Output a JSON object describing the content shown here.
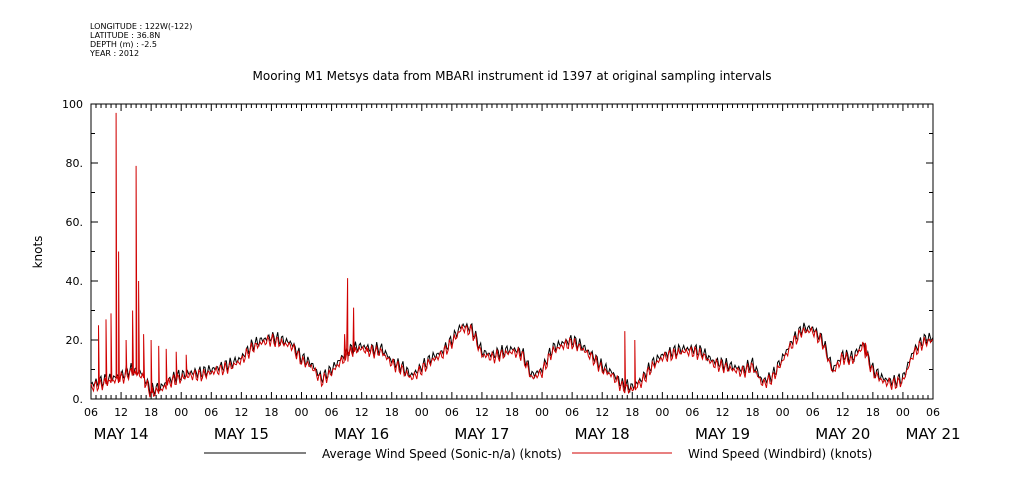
{
  "header": {
    "longitude": "LONGITUDE : 122W(-122)",
    "latitude": "LATITUDE : 36.8N",
    "depth": "DEPTH (m) : -2.5",
    "year": "YEAR : 2012"
  },
  "chart_data": {
    "type": "line",
    "title": "Mooring M1 Metsys data from MBARI instrument id 1397 at original sampling intervals",
    "ylabel": "knots",
    "xlabel": "",
    "ylim": [
      0,
      100
    ],
    "xlim_hours": [
      0,
      168
    ],
    "y_ticks": [
      "0.",
      "20.",
      "40.",
      "60.",
      "80.",
      "100"
    ],
    "x_hour_labels": [
      "06",
      "12",
      "18",
      "00",
      "06",
      "12",
      "18",
      "00",
      "06",
      "12",
      "18",
      "00",
      "06",
      "12",
      "18",
      "00",
      "06",
      "12",
      "18",
      "00",
      "06",
      "12",
      "18",
      "00",
      "06",
      "12",
      "18",
      "00",
      "06"
    ],
    "day_labels": [
      "MAY 14",
      "MAY 15",
      "MAY 16",
      "MAY 17",
      "MAY 18",
      "MAY 19",
      "MAY 20",
      "MAY 21"
    ],
    "grid": false,
    "legend_position": "bottom",
    "series": [
      {
        "name": "Average Wind Speed (Sonic-n/a) (knots)",
        "color": "#000000",
        "x_hours": [
          0,
          2,
          4,
          6,
          8,
          10,
          12,
          14,
          16,
          18,
          20,
          22,
          24,
          26,
          28,
          30,
          32,
          34,
          36,
          38,
          40,
          42,
          44,
          46,
          48,
          50,
          52,
          54,
          56,
          58,
          60,
          62,
          64,
          66,
          68,
          70,
          72,
          74,
          76,
          78,
          80,
          82,
          84,
          86,
          88,
          90,
          92,
          94,
          96,
          98,
          100,
          102,
          104,
          106,
          108,
          110,
          112,
          114,
          116,
          118,
          120,
          122,
          124,
          126,
          128,
          130,
          132,
          134,
          136,
          138,
          140,
          142,
          144,
          146,
          148,
          150,
          152,
          154,
          156,
          158,
          160,
          162,
          164,
          166,
          168
        ],
        "values": [
          5,
          6,
          7,
          8,
          10,
          9,
          3,
          4,
          7,
          8,
          9,
          9,
          10,
          11,
          12,
          14,
          18,
          20,
          21,
          20,
          19,
          14,
          12,
          7,
          10,
          14,
          17,
          18,
          17,
          17,
          13,
          11,
          8,
          11,
          14,
          16,
          20,
          25,
          24,
          16,
          15,
          16,
          17,
          16,
          8,
          10,
          17,
          19,
          20,
          18,
          15,
          11,
          9,
          5,
          4,
          7,
          12,
          15,
          16,
          17,
          17,
          16,
          13,
          12,
          11,
          10,
          12,
          6,
          8,
          14,
          20,
          24,
          24,
          20,
          10,
          15,
          14,
          19,
          10,
          7,
          6,
          7,
          16,
          20,
          21
        ],
        "spikes": []
      },
      {
        "name": "Wind Speed (Windbird) (knots)",
        "color": "#d00000",
        "x_hours": [
          0,
          2,
          4,
          6,
          8,
          10,
          12,
          14,
          16,
          18,
          20,
          22,
          24,
          26,
          28,
          30,
          32,
          34,
          36,
          38,
          40,
          42,
          44,
          46,
          48,
          50,
          52,
          54,
          56,
          58,
          60,
          62,
          64,
          66,
          68,
          70,
          72,
          74,
          76,
          78,
          80,
          82,
          84,
          86,
          88,
          90,
          92,
          94,
          96,
          98,
          100,
          102,
          104,
          106,
          108,
          110,
          112,
          114,
          116,
          118,
          120,
          122,
          124,
          126,
          128,
          130,
          132,
          134,
          136,
          138,
          140,
          142,
          144,
          146,
          148,
          150,
          152,
          154,
          156,
          158,
          160,
          162,
          164,
          166,
          168
        ],
        "values": [
          4,
          5,
          6,
          7,
          9,
          8,
          2,
          3,
          6,
          7,
          8,
          8,
          9,
          10,
          11,
          13,
          17,
          19,
          20,
          19,
          18,
          13,
          11,
          6,
          9,
          13,
          16,
          17,
          16,
          16,
          12,
          10,
          7,
          10,
          13,
          15,
          19,
          24,
          23,
          15,
          14,
          15,
          16,
          15,
          7,
          9,
          16,
          18,
          19,
          17,
          14,
          10,
          8,
          4,
          3,
          6,
          11,
          14,
          15,
          16,
          16,
          15,
          12,
          11,
          10,
          9,
          11,
          5,
          7,
          13,
          19,
          23,
          23,
          19,
          9,
          14,
          13,
          18,
          9,
          6,
          5,
          6,
          15,
          19,
          20
        ],
        "spikes": [
          [
            1.5,
            25
          ],
          [
            3,
            27
          ],
          [
            4,
            29
          ],
          [
            5,
            97
          ],
          [
            5.5,
            50
          ],
          [
            7,
            20
          ],
          [
            8.3,
            30
          ],
          [
            9,
            79
          ],
          [
            9.5,
            40
          ],
          [
            10.5,
            22
          ],
          [
            12,
            20
          ],
          [
            13.5,
            18
          ],
          [
            15,
            17
          ],
          [
            17,
            16
          ],
          [
            19,
            15
          ],
          [
            50.6,
            22
          ],
          [
            51.2,
            41
          ],
          [
            52.4,
            31
          ],
          [
            53.5,
            18
          ],
          [
            55,
            17
          ],
          [
            106.5,
            23
          ],
          [
            108.5,
            20
          ],
          [
            154.5,
            19
          ]
        ]
      }
    ]
  }
}
